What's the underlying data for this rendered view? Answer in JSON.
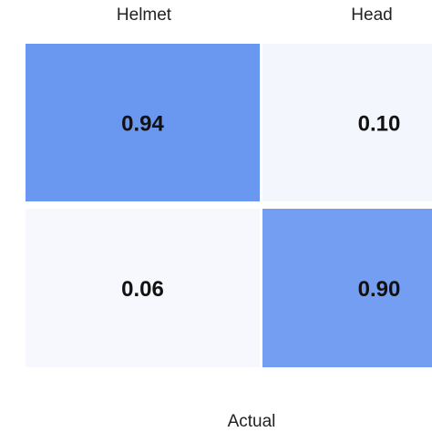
{
  "chart_data": {
    "type": "heatmap",
    "title": "",
    "xlabel": "Actual",
    "ylabel": "",
    "columns": [
      "Helmet",
      "Head"
    ],
    "rows": 2,
    "values": [
      [
        0.94,
        0.1
      ],
      [
        0.06,
        0.9
      ]
    ],
    "value_labels": [
      [
        "0.94",
        "0.10"
      ],
      [
        "0.06",
        "0.90"
      ]
    ],
    "color_range": [
      0,
      1
    ],
    "colors": {
      "high": "#5b8def",
      "low": "#f8f9fd",
      "text": "#111111",
      "label": "#222222"
    }
  }
}
